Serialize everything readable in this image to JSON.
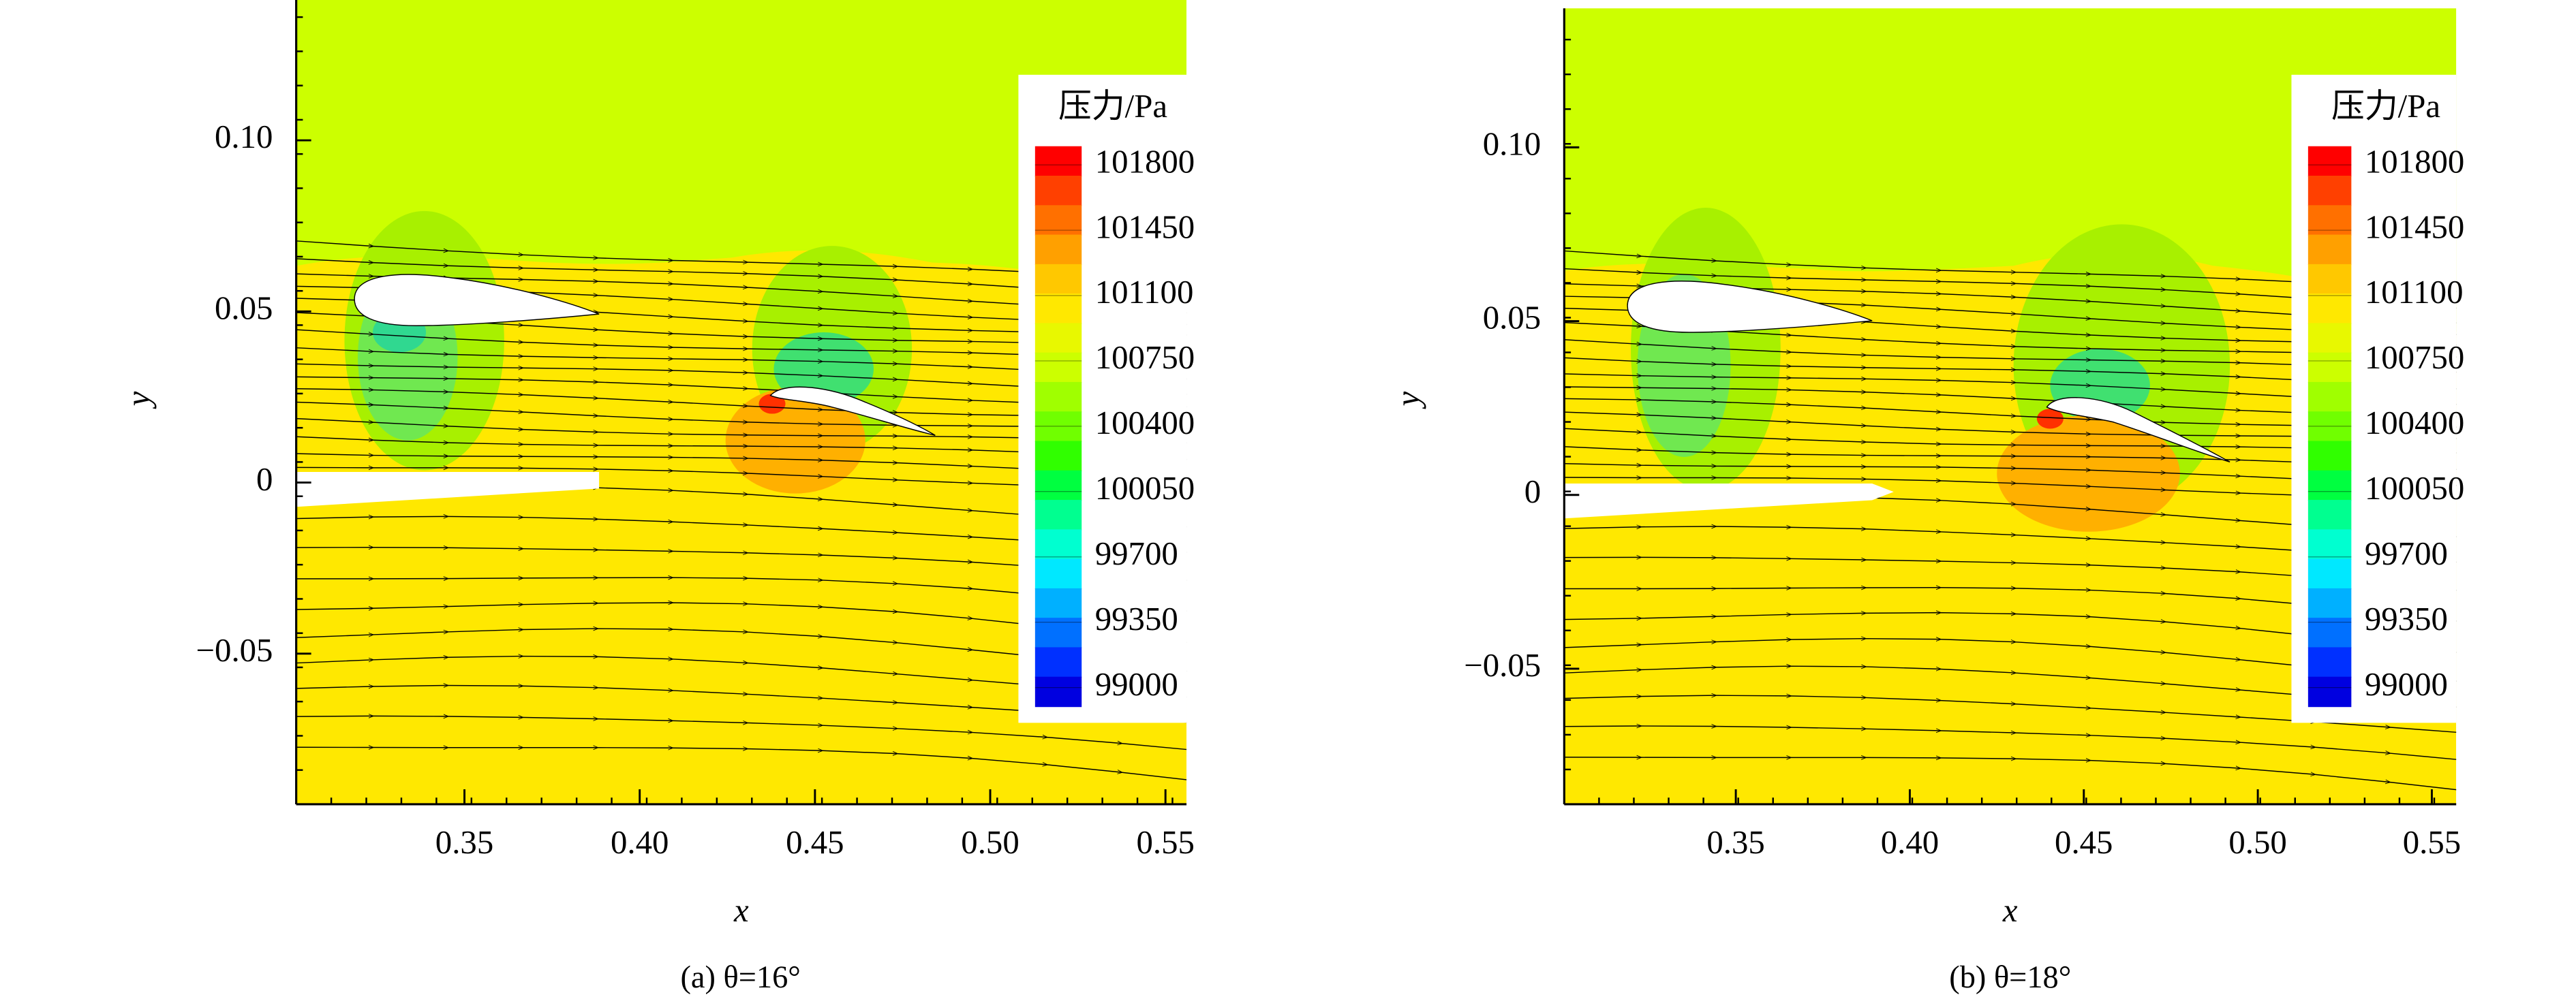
{
  "chart_data": [
    {
      "type": "contour",
      "caption": "(a) θ=16°",
      "xlabel": "x",
      "ylabel": "y",
      "xlim": [
        0.302,
        0.556
      ],
      "ylim": [
        -0.094,
        0.141
      ],
      "xticks": [
        0.35,
        {
          "value": 0.4,
          "label": "0.40"
        },
        0.45,
        {
          "value": 0.5,
          "label": "0.50"
        },
        0.55
      ],
      "yticks": [
        {
          "value": -0.05,
          "label": "−0.05"
        },
        0,
        0.05,
        {
          "value": 0.1,
          "label": "0.10"
        }
      ],
      "colorbar": {
        "title": "压力/Pa",
        "lim": [
          98900,
          101900
        ],
        "ticks": [
          101800,
          101450,
          101100,
          100750,
          100400,
          100050,
          99700,
          99350,
          99000
        ],
        "colors": [
          "#ff0000",
          "#ff4000",
          "#ff7000",
          "#ffa000",
          "#ffc800",
          "#ffe800",
          "#e8f800",
          "#ccff00",
          "#a0ff00",
          "#70ff00",
          "#30ff00",
          "#00ff40",
          "#00ff90",
          "#00ffd0",
          "#00e8ff",
          "#00b0ff",
          "#0070ff",
          "#0030ff",
          "#0000e0"
        ]
      }
    },
    {
      "type": "contour",
      "caption": "(b) θ=18°",
      "xlabel": "x",
      "ylabel": "y",
      "xlim": [
        0.3007,
        0.557
      ],
      "ylim": [
        -0.089,
        0.14
      ],
      "xticks": [
        0.35,
        {
          "value": 0.4,
          "label": "0.40"
        },
        0.45,
        {
          "value": 0.5,
          "label": "0.50"
        },
        0.55
      ],
      "yticks": [
        {
          "value": -0.05,
          "label": "−0.05"
        },
        0,
        0.05,
        {
          "value": 0.1,
          "label": "0.10"
        }
      ],
      "colorbar": {
        "title": "压力/Pa",
        "lim": [
          98900,
          101900
        ],
        "ticks": [
          101800,
          101450,
          101100,
          100750,
          100400,
          100050,
          99700,
          99350,
          99000
        ],
        "colors": [
          "#ff0000",
          "#ff4000",
          "#ff7000",
          "#ffa000",
          "#ffc800",
          "#ffe800",
          "#e8f800",
          "#ccff00",
          "#a0ff00",
          "#70ff00",
          "#30ff00",
          "#00ff40",
          "#00ff90",
          "#00ffd0",
          "#00e8ff",
          "#00b0ff",
          "#0070ff",
          "#0030ff",
          "#0000e0"
        ]
      }
    }
  ]
}
